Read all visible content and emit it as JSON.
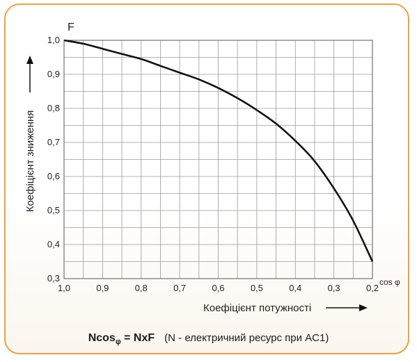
{
  "chart_data": {
    "type": "line",
    "title": "",
    "xlabel": "Коефіцієнт потужності",
    "ylabel": "Коефіцієнт зниження",
    "x_axis_symbol": "cos φ",
    "y_axis_symbol": "F",
    "xlim": [
      1.0,
      0.2
    ],
    "ylim": [
      0.3,
      1.0
    ],
    "x_reversed": true,
    "grid": true,
    "x_ticks": [
      "1,0",
      "0,9",
      "0,8",
      "0,7",
      "0,6",
      "0,5",
      "0,4",
      "0,3",
      "0,2"
    ],
    "y_ticks": [
      "1,0",
      "0,9",
      "0,8",
      "0,7",
      "0,6",
      "0,5",
      "0,4",
      "0,3"
    ],
    "series": [
      {
        "x": [
          1.0,
          0.95,
          0.9,
          0.85,
          0.8,
          0.75,
          0.7,
          0.65,
          0.6,
          0.55,
          0.5,
          0.45,
          0.4,
          0.35,
          0.3,
          0.25,
          0.2
        ],
        "y": [
          1.0,
          0.99,
          0.975,
          0.96,
          0.945,
          0.925,
          0.905,
          0.885,
          0.86,
          0.83,
          0.795,
          0.755,
          0.705,
          0.645,
          0.565,
          0.47,
          0.35
        ]
      }
    ]
  },
  "caption": {
    "formula_main": "Ncos",
    "formula_sub": "φ",
    "formula_rest": " = NxF",
    "note": "(N - електричний ресурс при AC1)"
  },
  "colors": {
    "frame": "#f0a03c",
    "grid": "#9a9a9a",
    "curve": "#111111"
  }
}
